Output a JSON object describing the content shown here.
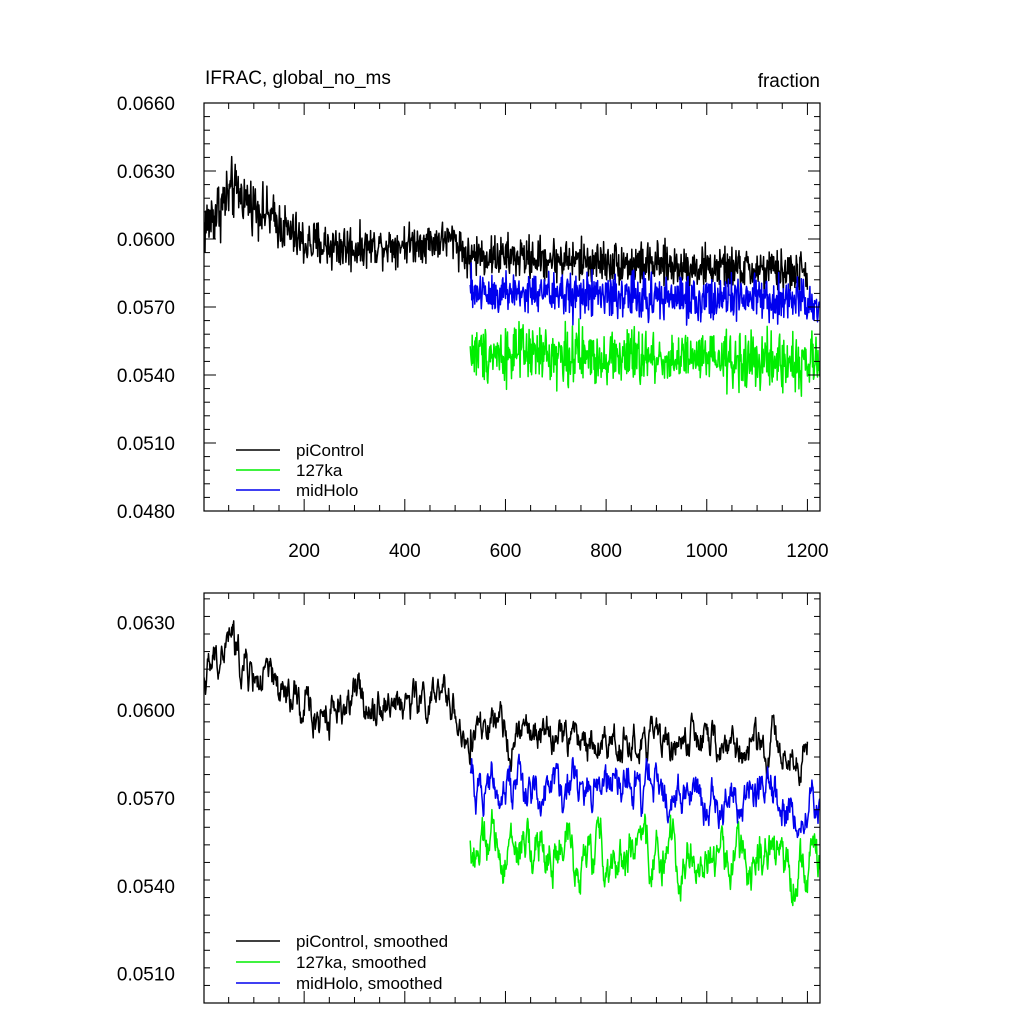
{
  "figure": {
    "title_left": "IFRAC, global_no_ms",
    "title_right": "fraction"
  },
  "chart_data": [
    {
      "type": "line",
      "xlim": [
        1,
        1225
      ],
      "ylim": [
        0.048,
        0.066
      ],
      "xticks": [
        200,
        400,
        600,
        800,
        1000,
        1200
      ],
      "xticklabels": [
        "200",
        "400",
        "600",
        "800",
        "1000",
        "1200"
      ],
      "yticks": [
        0.048,
        0.051,
        0.054,
        0.057,
        0.06,
        0.063,
        0.066
      ],
      "yticklabels": [
        "0.0480",
        "0.0510",
        "0.0540",
        "0.0570",
        "0.0600",
        "0.0630",
        "0.0660"
      ],
      "legend": {
        "position": "bottom-left",
        "entries": [
          "piControl",
          "127ka",
          "midHolo"
        ]
      },
      "series": [
        {
          "name": "piControl",
          "color": "#000000",
          "x_start": 1,
          "x_end": 1200,
          "segments": [
            {
              "from": 1,
              "to": 60,
              "mean_start": 0.0605,
              "mean_end": 0.0622,
              "noise": 0.0018
            },
            {
              "from": 60,
              "to": 200,
              "mean_start": 0.0622,
              "mean_end": 0.0598,
              "noise": 0.0014
            },
            {
              "from": 200,
              "to": 300,
              "mean_start": 0.0598,
              "mean_end": 0.0596,
              "noise": 0.0014
            },
            {
              "from": 300,
              "to": 500,
              "mean_start": 0.0596,
              "mean_end": 0.06,
              "noise": 0.0011
            },
            {
              "from": 500,
              "to": 530,
              "mean_start": 0.06,
              "mean_end": 0.059,
              "noise": 0.0012
            },
            {
              "from": 530,
              "to": 1200,
              "mean_start": 0.0593,
              "mean_end": 0.0585,
              "noise": 0.0012
            }
          ]
        },
        {
          "name": "127ka",
          "color": "#00ee00",
          "x_start": 530,
          "x_end": 1225,
          "segments": [
            {
              "from": 530,
              "to": 1225,
              "mean_start": 0.055,
              "mean_end": 0.0545,
              "noise": 0.0016
            }
          ]
        },
        {
          "name": "midHolo",
          "color": "#0000ee",
          "x_start": 530,
          "x_end": 1225,
          "segments": [
            {
              "from": 530,
              "to": 1225,
              "mean_start": 0.0577,
              "mean_end": 0.0572,
              "noise": 0.0013
            }
          ]
        }
      ]
    },
    {
      "type": "line",
      "xlim": [
        1,
        1225
      ],
      "ylim": [
        0.05,
        0.064
      ],
      "xticks": [
        200,
        400,
        600,
        800,
        1000,
        1200
      ],
      "xticklabels": [],
      "yticks": [
        0.051,
        0.054,
        0.057,
        0.06,
        0.063
      ],
      "yticklabels": [
        "0.0510",
        "0.0540",
        "0.0570",
        "0.0600",
        "0.0630"
      ],
      "legend": {
        "position": "bottom-left",
        "entries": [
          "piControl, smoothed",
          "127ka, smoothed",
          "midHolo, smoothed"
        ]
      },
      "series": [
        {
          "name": "piControl, smoothed",
          "color": "#000000",
          "x_start": 1,
          "x_end": 1200,
          "segments": [
            {
              "from": 1,
              "to": 60,
              "mean_start": 0.061,
              "mean_end": 0.0626,
              "noise": 0.0007
            },
            {
              "from": 60,
              "to": 200,
              "mean_start": 0.0618,
              "mean_end": 0.0598,
              "noise": 0.0008
            },
            {
              "from": 200,
              "to": 300,
              "mean_start": 0.0598,
              "mean_end": 0.0604,
              "noise": 0.0008
            },
            {
              "from": 300,
              "to": 500,
              "mean_start": 0.0604,
              "mean_end": 0.0602,
              "noise": 0.0007
            },
            {
              "from": 500,
              "to": 530,
              "mean_start": 0.06,
              "mean_end": 0.0582,
              "noise": 0.0006
            },
            {
              "from": 530,
              "to": 1200,
              "mean_start": 0.0592,
              "mean_end": 0.0586,
              "noise": 0.0007
            }
          ]
        },
        {
          "name": "127ka, smoothed",
          "color": "#00ee00",
          "x_start": 530,
          "x_end": 1225,
          "segments": [
            {
              "from": 530,
              "to": 1225,
              "mean_start": 0.0552,
              "mean_end": 0.0548,
              "noise": 0.0009
            }
          ]
        },
        {
          "name": "midHolo, smoothed",
          "color": "#0000ee",
          "x_start": 530,
          "x_end": 1225,
          "segments": [
            {
              "from": 530,
              "to": 1225,
              "mean_start": 0.0576,
              "mean_end": 0.0568,
              "noise": 0.0008
            }
          ]
        }
      ]
    }
  ]
}
